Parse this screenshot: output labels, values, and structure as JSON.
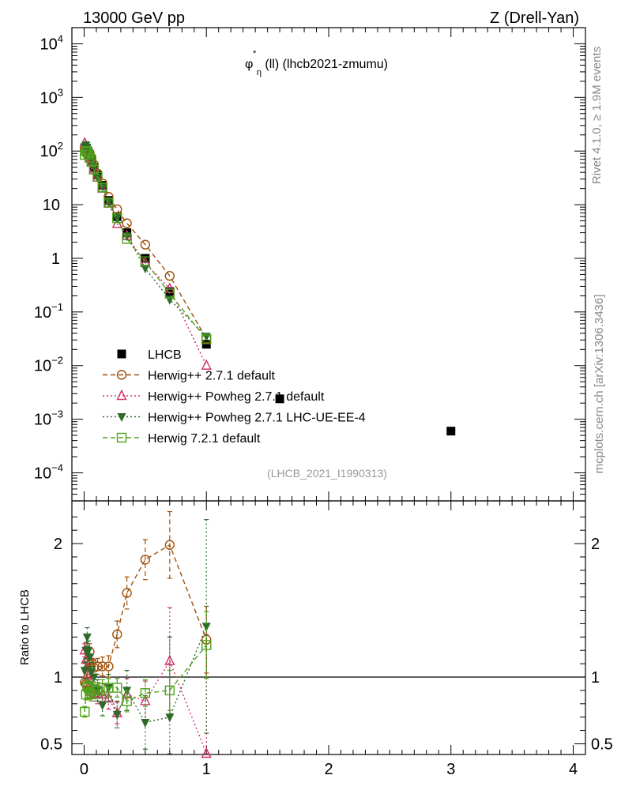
{
  "header": {
    "left": "13000 GeV pp",
    "right": "Z (Drell-Yan)"
  },
  "side_labels": {
    "rivet": "Rivet 4.1.0, ≥ 1.9M events",
    "mcplots": "mcplots.cern.ch [arXiv:1306.3436]"
  },
  "colors": {
    "lhcb": "#000000",
    "herwigpp": "#a0500a",
    "powheg": "#d0306a",
    "powheg_ue": "#2e6b2a",
    "herwig7": "#4ea21a"
  },
  "chart_data": {
    "type": "line",
    "title": "φ*η(ll) (lhcb2021-zmumu)",
    "title_parts": {
      "symbol": "φ",
      "sup": "*",
      "sub": "η",
      "rest": "(ll) (lhcb2021-zmumu)"
    },
    "analysis_tag": "(LHCB_2021_I1990313)",
    "xlim": [
      -0.1,
      4.1
    ],
    "x_ticks": [
      "0",
      "1",
      "2",
      "3",
      "4"
    ],
    "main": {
      "yscale": "log",
      "ylim": [
        3e-05,
        20000
      ],
      "y_ticks": [
        {
          "value": 10000,
          "base": "10",
          "exp": "4"
        },
        {
          "value": 1000,
          "base": "10",
          "exp": "3"
        },
        {
          "value": 100,
          "base": "10",
          "exp": "2"
        },
        {
          "value": 10,
          "base": "10",
          "exp": ""
        },
        {
          "value": 1,
          "base": "1",
          "exp": ""
        },
        {
          "value": 0.1,
          "base": "10",
          "exp": "−1"
        },
        {
          "value": 0.01,
          "base": "10",
          "exp": "−2"
        },
        {
          "value": 0.001,
          "base": "10",
          "exp": "−3"
        },
        {
          "value": 0.0001,
          "base": "10",
          "exp": "−4"
        }
      ]
    },
    "ratio": {
      "ylabel": "Ratio to LHCB",
      "ylim": [
        0.42,
        2.32
      ],
      "y_ticks": [
        {
          "value": 2,
          "label": "2"
        },
        {
          "value": 1,
          "label": "1"
        },
        {
          "value": 0.5,
          "label": "0.5"
        }
      ],
      "reference_line": 1
    },
    "legend_position": "lower-left",
    "series": [
      {
        "name": "LHCB",
        "style": "data",
        "marker": "square-filled",
        "color": "#000000",
        "x": [
          0.005,
          0.015,
          0.025,
          0.035,
          0.045,
          0.06,
          0.08,
          0.11,
          0.15,
          0.2,
          0.27,
          0.35,
          0.5,
          0.7,
          1.0,
          1.6,
          3.0
        ],
        "y": [
          115,
          110,
          102,
          92,
          82,
          68,
          50,
          36,
          23,
          12,
          6,
          3,
          1.0,
          0.24,
          0.025,
          0.0024,
          0.0006
        ]
      },
      {
        "name": "Herwig++ 2.7.1 default",
        "style": "dashed",
        "marker": "circle-open",
        "color": "#a0500a",
        "x": [
          0.005,
          0.015,
          0.025,
          0.035,
          0.045,
          0.06,
          0.08,
          0.11,
          0.15,
          0.2,
          0.27,
          0.35,
          0.5,
          0.7,
          1.0
        ],
        "y": [
          110,
          106,
          104,
          95,
          92,
          76,
          56,
          38,
          25,
          14,
          8.2,
          4.5,
          1.8,
          0.47,
          0.032
        ],
        "ratio": [
          0.96,
          0.95,
          1.05,
          1.12,
          1.19,
          1.11,
          1.07,
          1.08,
          1.08,
          1.08,
          1.32,
          1.63,
          1.88,
          1.99,
          1.28
        ],
        "ratio_err": [
          0.04,
          0.04,
          0.05,
          0.05,
          0.06,
          0.05,
          0.06,
          0.06,
          0.07,
          0.08,
          0.1,
          0.12,
          0.15,
          0.25,
          0.25
        ]
      },
      {
        "name": "Herwig++ Powheg 2.7.1 default",
        "style": "dotted",
        "marker": "triangle-open",
        "color": "#d0306a",
        "x": [
          0.005,
          0.015,
          0.025,
          0.035,
          0.045,
          0.06,
          0.08,
          0.11,
          0.15,
          0.2,
          0.27,
          0.35,
          0.5,
          0.7,
          1.0
        ],
        "y": [
          140,
          125,
          105,
          85,
          76,
          63,
          46,
          32,
          20,
          10.5,
          4.4,
          2.6,
          0.82,
          0.27,
          0.01
        ],
        "ratio": [
          1.2,
          1.13,
          1.02,
          0.93,
          0.92,
          0.9,
          0.88,
          0.87,
          0.87,
          0.84,
          0.73,
          0.87,
          0.82,
          1.12,
          0.42
        ],
        "ratio_err": [
          0.05,
          0.05,
          0.05,
          0.06,
          0.06,
          0.06,
          0.06,
          0.07,
          0.08,
          0.08,
          0.08,
          0.12,
          0.15,
          0.4,
          0.9
        ]
      },
      {
        "name": "Herwig++ Powheg 2.7.1 LHC-UE-EE-4",
        "style": "dotted",
        "marker": "triangle-down-filled",
        "color": "#2e6b2a",
        "x": [
          0.005,
          0.015,
          0.025,
          0.035,
          0.045,
          0.06,
          0.08,
          0.11,
          0.15,
          0.2,
          0.27,
          0.35,
          0.5,
          0.7,
          1.0
        ],
        "y": [
          120,
          130,
          118,
          100,
          90,
          70,
          52,
          32,
          22,
          11.2,
          5.6,
          2.6,
          0.65,
          0.17,
          0.035
        ],
        "ratio": [
          1.05,
          1.2,
          1.3,
          1.2,
          1.15,
          1.04,
          1.0,
          0.9,
          0.79,
          0.92,
          0.72,
          0.9,
          0.66,
          0.7,
          1.38
        ],
        "ratio_err": [
          0.06,
          0.06,
          0.07,
          0.07,
          0.07,
          0.07,
          0.08,
          0.08,
          0.08,
          0.1,
          0.1,
          0.15,
          0.2,
          0.6,
          0.8
        ]
      },
      {
        "name": "Herwig 7.2.1 default",
        "style": "dashed",
        "marker": "square-open",
        "color": "#4ea21a",
        "x": [
          0.005,
          0.015,
          0.025,
          0.035,
          0.045,
          0.06,
          0.08,
          0.11,
          0.15,
          0.2,
          0.27,
          0.35,
          0.5,
          0.7,
          1.0
        ],
        "y": [
          85,
          100,
          95,
          85,
          75,
          63,
          45,
          33,
          21,
          11,
          5.6,
          2.3,
          0.88,
          0.22,
          0.031
        ],
        "ratio": [
          0.74,
          0.87,
          0.93,
          0.92,
          0.88,
          0.87,
          0.91,
          0.9,
          0.92,
          0.92,
          0.92,
          0.82,
          0.88,
          0.9,
          1.24
        ],
        "ratio_err": [
          0.04,
          0.04,
          0.05,
          0.05,
          0.05,
          0.05,
          0.05,
          0.06,
          0.06,
          0.07,
          0.07,
          0.08,
          0.1,
          0.15,
          0.25
        ]
      }
    ]
  }
}
